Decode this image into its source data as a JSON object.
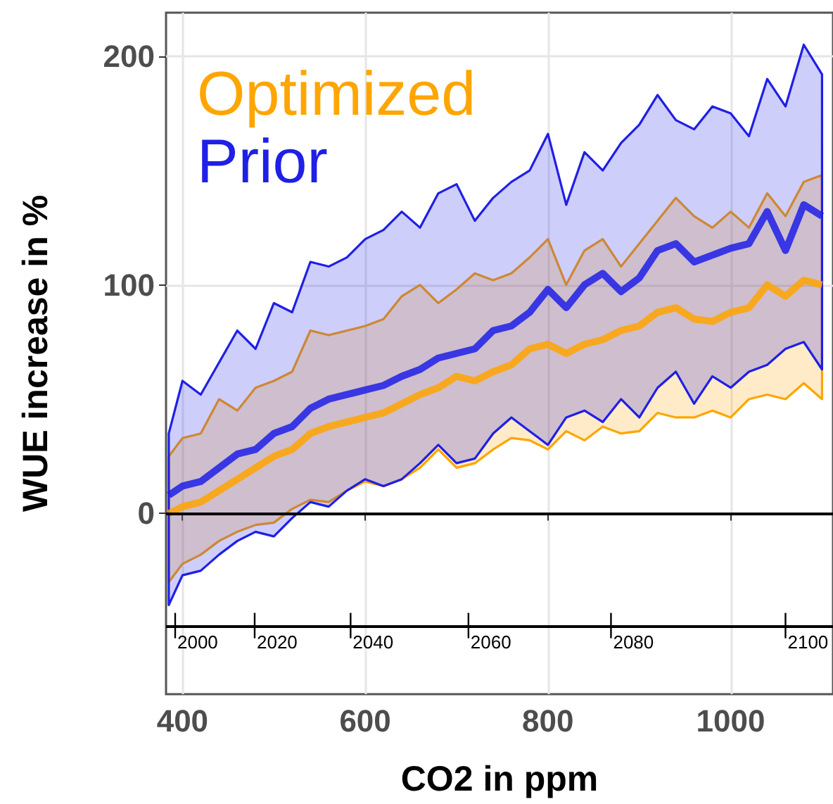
{
  "chart_data": {
    "type": "line",
    "xlabel": "CO2 in ppm",
    "ylabel": "WUE increase in %",
    "x": [
      385,
      400,
      420,
      440,
      460,
      480,
      500,
      520,
      540,
      560,
      580,
      600,
      620,
      640,
      660,
      680,
      700,
      720,
      740,
      760,
      780,
      800,
      820,
      840,
      860,
      880,
      900,
      920,
      940,
      960,
      980,
      1000,
      1020,
      1040,
      1060,
      1080,
      1100
    ],
    "series": [
      {
        "name": "Optimized",
        "color": "#ffa500",
        "values": [
          0,
          3,
          5,
          10,
          15,
          20,
          25,
          28,
          35,
          38,
          40,
          42,
          44,
          48,
          52,
          55,
          60,
          58,
          62,
          65,
          72,
          74,
          70,
          74,
          76,
          80,
          82,
          88,
          90,
          85,
          84,
          88,
          90,
          100,
          95,
          102,
          100
        ],
        "lower": [
          -30,
          -22,
          -18,
          -12,
          -8,
          -5,
          -4,
          2,
          6,
          5,
          10,
          14,
          12,
          15,
          20,
          28,
          20,
          22,
          28,
          33,
          32,
          28,
          36,
          32,
          38,
          35,
          36,
          44,
          42,
          42,
          45,
          42,
          50,
          52,
          50,
          57,
          50
        ],
        "upper": [
          25,
          33,
          35,
          50,
          45,
          55,
          58,
          62,
          80,
          78,
          80,
          82,
          85,
          95,
          100,
          92,
          98,
          105,
          102,
          105,
          112,
          120,
          100,
          115,
          120,
          108,
          118,
          128,
          138,
          130,
          125,
          132,
          125,
          140,
          130,
          145,
          148
        ]
      },
      {
        "name": "Prior",
        "color": "#1f1fe6",
        "values": [
          8,
          12,
          14,
          20,
          26,
          28,
          35,
          38,
          46,
          50,
          52,
          54,
          56,
          60,
          63,
          68,
          70,
          72,
          80,
          82,
          88,
          98,
          90,
          100,
          105,
          97,
          103,
          115,
          118,
          110,
          113,
          116,
          118,
          132,
          115,
          135,
          130
        ],
        "lower": [
          -40,
          -27,
          -25,
          -18,
          -12,
          -8,
          -10,
          -2,
          5,
          3,
          10,
          15,
          12,
          15,
          22,
          30,
          22,
          24,
          35,
          42,
          36,
          30,
          42,
          45,
          40,
          50,
          42,
          55,
          62,
          48,
          60,
          55,
          62,
          65,
          72,
          75,
          63
        ],
        "upper": [
          35,
          58,
          52,
          66,
          80,
          72,
          92,
          88,
          110,
          108,
          112,
          120,
          124,
          132,
          125,
          140,
          144,
          128,
          138,
          145,
          150,
          166,
          135,
          158,
          150,
          162,
          170,
          183,
          172,
          168,
          178,
          175,
          165,
          190,
          178,
          205,
          192
        ]
      }
    ],
    "xlim": [
      382,
      1112
    ],
    "xticks": [
      400,
      600,
      800,
      1000
    ],
    "ylim": [
      -79,
      219
    ],
    "yticks": [
      0,
      100,
      200
    ],
    "annotations": [
      {
        "text": "2000",
        "x": 392,
        "y": -49
      },
      {
        "text": "2020",
        "x": 479,
        "y": -49
      },
      {
        "text": "2040",
        "x": 584,
        "y": -49
      },
      {
        "text": "2060",
        "x": 713,
        "y": -49
      },
      {
        "text": "2080",
        "x": 869,
        "y": -49
      },
      {
        "text": "2100",
        "x": 1060,
        "y": -49
      }
    ],
    "ref_lines": [
      {
        "axis": "y",
        "value": 0,
        "color": "#000000"
      },
      {
        "axis": "y",
        "value": -49,
        "color": "#000000"
      }
    ],
    "grid": true,
    "legend": "top left",
    "marker": "none",
    "line_style": "solid"
  }
}
